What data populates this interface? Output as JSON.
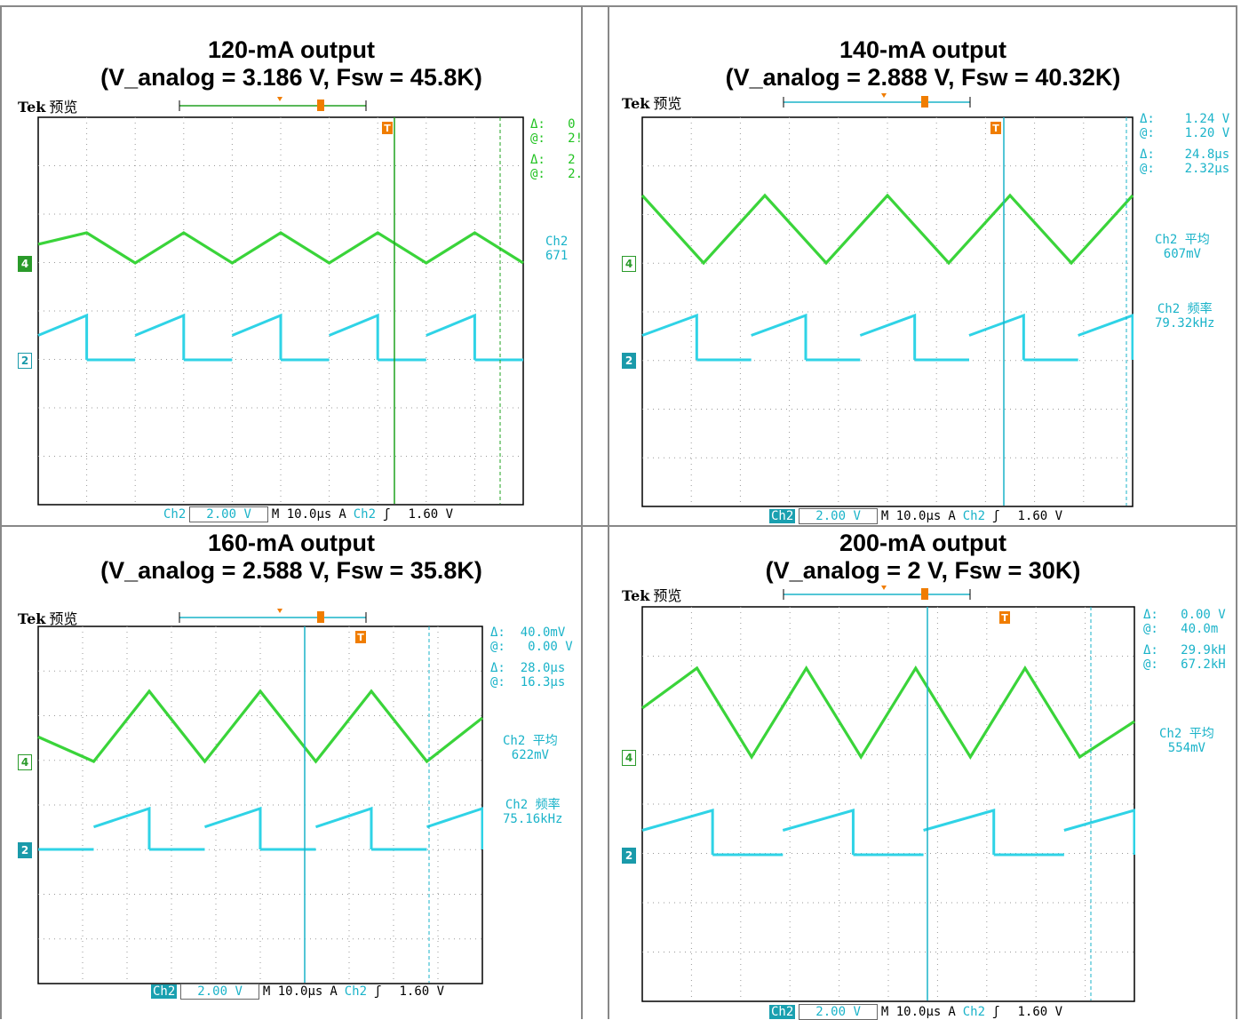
{
  "panels": [
    {
      "title_line1": "120-mA output",
      "title_line2": "(V_analog = 3.186 V, Fsw = 45.8K)",
      "header": {
        "brand": "Tek",
        "mode": "预览"
      },
      "readouts": [
        "Δ:   0",
        "@:   2!",
        "Δ:   2",
        "@:   2."
      ],
      "ch_label": "Ch2",
      "ch_value": "671",
      "ch_label2": "",
      "ch_value2": "",
      "footer": {
        "ch": "Ch2",
        "volts": "2.00 V",
        "time": "M 10.0µs",
        "trig_mode": "A",
        "trig_ch": "Ch2",
        "trig_slope": "ʃ",
        "trig_level": "1.60 V"
      }
    },
    {
      "title_line1": "140-mA output",
      "title_line2": "(V_analog = 2.888 V, Fsw = 40.32K)",
      "header": {
        "brand": "Tek",
        "mode": "预览"
      },
      "readouts": [
        "Δ:    1.24 V",
        "@:    1.20 V",
        "Δ:    24.8µs",
        "@:    2.32µs"
      ],
      "ch_label": "Ch2 平均",
      "ch_value": "607mV",
      "ch_label2": "Ch2 频率",
      "ch_value2": "79.32kHz",
      "footer": {
        "ch": "Ch2",
        "volts": "2.00 V",
        "time": "M 10.0µs",
        "trig_mode": "A",
        "trig_ch": "Ch2",
        "trig_slope": "ʃ",
        "trig_level": "1.60 V"
      }
    },
    {
      "title_line1": "160-mA output",
      "title_line2": "(V_analog = 2.588 V, Fsw = 35.8K)",
      "header": {
        "brand": "Tek",
        "mode": "预览"
      },
      "readouts": [
        "Δ:  40.0mV",
        "@:   0.00 V",
        "Δ:  28.0µs",
        "@:  16.3µs"
      ],
      "ch_label": "Ch2 平均",
      "ch_value": "622mV",
      "ch_label2": "Ch2 频率",
      "ch_value2": "75.16kHz",
      "footer": {
        "ch": "Ch2",
        "volts": "2.00 V",
        "time": "M 10.0µs",
        "trig_mode": "A",
        "trig_ch": "Ch2",
        "trig_slope": "ʃ",
        "trig_level": "1.60 V"
      }
    },
    {
      "title_line1": "200-mA output",
      "title_line2": "(V_analog = 2 V, Fsw = 30K)",
      "header": {
        "brand": "Tek",
        "mode": "预览"
      },
      "readouts": [
        "Δ:   0.00 V",
        "@:   40.0m",
        "Δ:   29.9kH",
        "@:   67.2kH"
      ],
      "ch_label": "Ch2 平均",
      "ch_value": "554mV",
      "ch_label2": "",
      "ch_value2": "",
      "footer": {
        "ch": "Ch2",
        "volts": "2.00 V",
        "time": "M 10.0µs",
        "trig_mode": "A",
        "trig_ch": "Ch2",
        "trig_slope": "ʃ",
        "trig_level": "1.60 V"
      }
    }
  ],
  "chart_data": [
    {
      "type": "line",
      "series": [
        {
          "values": [
            0.62,
            1.0,
            0.0,
            1.0,
            0.0,
            1.0,
            0.0,
            1.0,
            0.0,
            1.0,
            0.0
          ]
        },
        {
          "values": [
            1,
            0,
            1,
            0,
            1,
            0,
            1,
            0,
            1,
            0
          ]
        }
      ],
      "channel_markers": [
        "4",
        "2"
      ],
      "trigger_marker": "T"
    },
    {
      "type": "line",
      "series": [
        {
          "values": [
            1.0,
            0.0,
            1.0,
            0.0,
            1.0,
            0.0,
            1.0,
            0.0,
            1.0
          ]
        },
        {
          "values": [
            1,
            0,
            1,
            0,
            1,
            0,
            1,
            0,
            1
          ]
        }
      ],
      "channel_markers": [
        "4",
        "2"
      ],
      "trigger_marker": "T"
    },
    {
      "type": "line",
      "series": [
        {
          "values": [
            0.35,
            0.0,
            1.0,
            0.0,
            1.0,
            0.0,
            1.0,
            0.0,
            0.62
          ]
        },
        {
          "values": [
            0,
            1,
            0,
            1,
            0,
            1,
            0,
            1
          ]
        }
      ],
      "channel_markers": [
        "4",
        "2"
      ],
      "trigger_marker": "T"
    },
    {
      "type": "line",
      "series": [
        {
          "values": [
            0.55,
            1.0,
            0.0,
            1.0,
            0.0,
            1.0,
            0.0,
            1.0,
            0.0,
            0.4
          ]
        },
        {
          "values": [
            1,
            0,
            1,
            0,
            1,
            0,
            1
          ]
        }
      ],
      "channel_markers": [
        "4",
        "2"
      ],
      "trigger_marker": "T"
    }
  ]
}
